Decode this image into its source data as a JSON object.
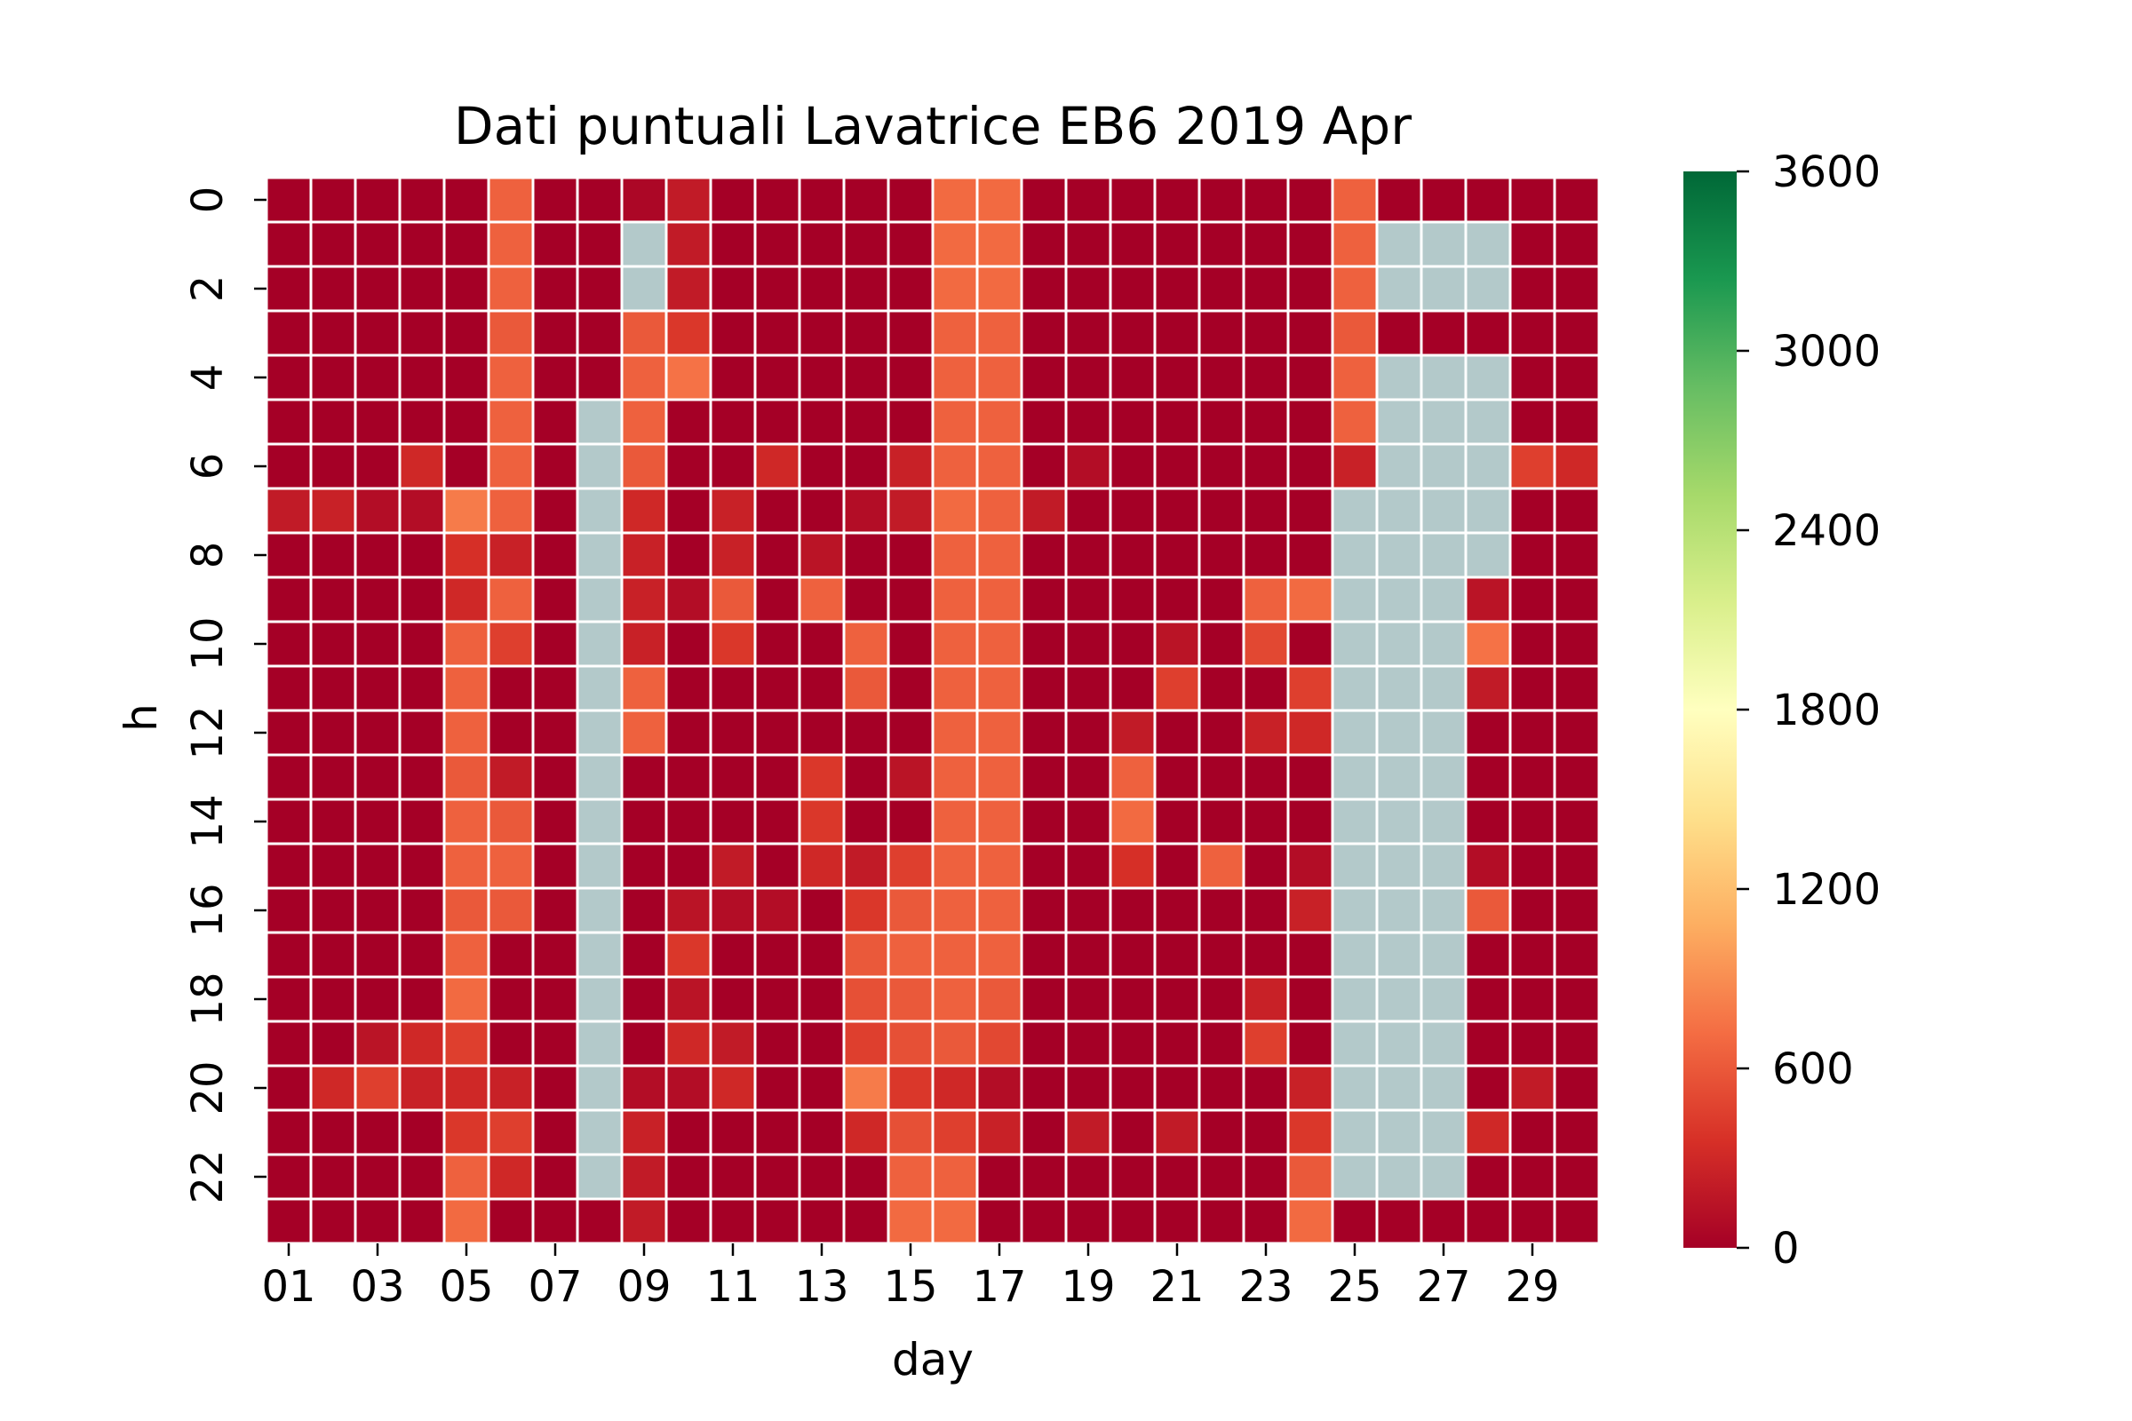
{
  "chart_data": {
    "type": "heatmap",
    "title": "Dati puntuali Lavatrice EB6 2019 Apr",
    "xlabel": "day",
    "ylabel": "h",
    "x": [
      "01",
      "02",
      "03",
      "04",
      "05",
      "06",
      "07",
      "08",
      "09",
      "10",
      "11",
      "12",
      "13",
      "14",
      "15",
      "16",
      "17",
      "18",
      "19",
      "20",
      "21",
      "22",
      "23",
      "24",
      "25",
      "26",
      "27",
      "28",
      "29",
      "30"
    ],
    "y": [
      0,
      1,
      2,
      3,
      4,
      5,
      6,
      7,
      8,
      9,
      10,
      11,
      12,
      13,
      14,
      15,
      16,
      17,
      18,
      19,
      20,
      21,
      22,
      23
    ],
    "x_tick_labels": [
      "01",
      "03",
      "05",
      "07",
      "09",
      "11",
      "13",
      "15",
      "17",
      "19",
      "21",
      "23",
      "25",
      "27",
      "29"
    ],
    "y_tick_labels": [
      "0",
      "2",
      "4",
      "6",
      "8",
      "10",
      "12",
      "14",
      "16",
      "18",
      "20",
      "22"
    ],
    "colorbar": {
      "vmin": 0,
      "vmax": 3600,
      "ticks": [
        "0",
        "600",
        "1200",
        "1800",
        "2400",
        "3000",
        "3600"
      ],
      "colormap": "RdYlGn",
      "colors": [
        "#a50026",
        "#d73027",
        "#f46d43",
        "#fdae61",
        "#fee08b",
        "#ffffbf",
        "#d9ef8b",
        "#a6d96a",
        "#66bd63",
        "#1a9850",
        "#006837"
      ]
    },
    "missing_color": "#b3c9ca",
    "grid_line_color": "#ffffff",
    "values": [
      [
        0,
        0,
        0,
        0,
        0,
        650,
        0,
        0,
        50,
        200,
        0,
        0,
        0,
        0,
        0,
        700,
        700,
        0,
        0,
        0,
        0,
        0,
        0,
        0,
        650,
        0,
        0,
        0,
        0,
        0
      ],
      [
        0,
        0,
        0,
        0,
        0,
        650,
        0,
        0,
        null,
        200,
        0,
        0,
        0,
        0,
        0,
        700,
        700,
        0,
        0,
        0,
        0,
        0,
        0,
        0,
        650,
        null,
        null,
        null,
        0,
        0
      ],
      [
        0,
        0,
        0,
        0,
        0,
        650,
        0,
        0,
        null,
        200,
        0,
        0,
        0,
        0,
        0,
        700,
        700,
        0,
        0,
        0,
        0,
        0,
        0,
        0,
        650,
        null,
        null,
        null,
        0,
        0
      ],
      [
        0,
        0,
        0,
        0,
        0,
        600,
        0,
        0,
        600,
        400,
        0,
        0,
        0,
        0,
        0,
        650,
        650,
        0,
        0,
        0,
        0,
        0,
        0,
        0,
        600,
        0,
        0,
        0,
        0,
        0
      ],
      [
        0,
        0,
        0,
        0,
        0,
        650,
        0,
        0,
        650,
        750,
        0,
        0,
        0,
        0,
        0,
        650,
        650,
        0,
        0,
        0,
        0,
        0,
        0,
        0,
        650,
        null,
        null,
        null,
        0,
        0
      ],
      [
        0,
        0,
        0,
        0,
        0,
        650,
        0,
        null,
        650,
        0,
        0,
        0,
        0,
        0,
        0,
        650,
        650,
        0,
        0,
        0,
        0,
        0,
        0,
        0,
        650,
        null,
        null,
        null,
        0,
        0
      ],
      [
        0,
        0,
        0,
        300,
        0,
        650,
        0,
        null,
        600,
        0,
        0,
        300,
        0,
        0,
        250,
        650,
        650,
        0,
        100,
        0,
        0,
        0,
        0,
        0,
        250,
        null,
        null,
        null,
        450,
        300
      ],
      [
        200,
        250,
        100,
        100,
        800,
        650,
        0,
        null,
        300,
        0,
        250,
        0,
        0,
        100,
        200,
        700,
        650,
        200,
        0,
        0,
        0,
        0,
        0,
        0,
        null,
        null,
        null,
        null,
        0,
        0
      ],
      [
        0,
        0,
        0,
        0,
        350,
        250,
        0,
        null,
        250,
        0,
        250,
        0,
        150,
        0,
        0,
        650,
        650,
        0,
        0,
        0,
        0,
        0,
        0,
        0,
        null,
        null,
        null,
        null,
        0,
        0
      ],
      [
        0,
        0,
        0,
        0,
        300,
        650,
        0,
        null,
        250,
        100,
        600,
        0,
        650,
        0,
        0,
        650,
        650,
        0,
        0,
        0,
        0,
        0,
        650,
        700,
        null,
        null,
        null,
        150,
        0,
        0
      ],
      [
        0,
        0,
        0,
        0,
        650,
        450,
        0,
        null,
        250,
        0,
        400,
        0,
        0,
        650,
        0,
        650,
        650,
        0,
        0,
        0,
        150,
        0,
        500,
        0,
        null,
        null,
        null,
        750,
        0,
        0
      ],
      [
        0,
        0,
        0,
        0,
        650,
        0,
        0,
        null,
        650,
        0,
        0,
        0,
        0,
        600,
        0,
        650,
        650,
        0,
        0,
        0,
        450,
        0,
        0,
        450,
        null,
        null,
        null,
        200,
        0,
        0
      ],
      [
        0,
        0,
        0,
        0,
        650,
        0,
        0,
        null,
        650,
        0,
        0,
        0,
        0,
        0,
        0,
        650,
        650,
        0,
        0,
        200,
        0,
        0,
        250,
        300,
        null,
        null,
        null,
        0,
        0,
        0
      ],
      [
        0,
        0,
        0,
        0,
        600,
        200,
        0,
        null,
        0,
        0,
        0,
        0,
        400,
        0,
        150,
        650,
        650,
        0,
        0,
        650,
        0,
        0,
        0,
        0,
        null,
        null,
        null,
        0,
        0,
        0
      ],
      [
        0,
        0,
        0,
        0,
        650,
        600,
        0,
        null,
        0,
        0,
        0,
        0,
        400,
        0,
        0,
        650,
        650,
        0,
        0,
        700,
        0,
        0,
        0,
        0,
        null,
        null,
        null,
        0,
        0,
        0
      ],
      [
        0,
        0,
        0,
        0,
        650,
        650,
        0,
        null,
        0,
        0,
        200,
        0,
        300,
        200,
        450,
        650,
        650,
        0,
        0,
        350,
        0,
        650,
        0,
        100,
        null,
        null,
        null,
        100,
        0,
        0
      ],
      [
        0,
        0,
        0,
        0,
        600,
        600,
        0,
        null,
        0,
        150,
        100,
        100,
        0,
        400,
        600,
        650,
        650,
        0,
        0,
        0,
        0,
        0,
        0,
        250,
        null,
        null,
        null,
        600,
        0,
        0
      ],
      [
        0,
        0,
        0,
        0,
        650,
        0,
        0,
        null,
        0,
        400,
        0,
        0,
        0,
        600,
        650,
        650,
        650,
        0,
        0,
        0,
        0,
        0,
        0,
        0,
        null,
        null,
        null,
        0,
        0,
        0
      ],
      [
        0,
        0,
        0,
        0,
        700,
        0,
        0,
        null,
        0,
        150,
        0,
        0,
        0,
        550,
        600,
        650,
        600,
        0,
        0,
        0,
        0,
        0,
        250,
        0,
        null,
        null,
        null,
        0,
        0,
        0
      ],
      [
        0,
        0,
        150,
        300,
        450,
        0,
        0,
        null,
        0,
        300,
        200,
        0,
        0,
        450,
        550,
        600,
        500,
        0,
        0,
        0,
        0,
        0,
        450,
        0,
        null,
        null,
        null,
        0,
        0,
        0
      ],
      [
        0,
        300,
        450,
        250,
        300,
        250,
        0,
        null,
        100,
        100,
        300,
        0,
        0,
        800,
        400,
        300,
        100,
        0,
        0,
        0,
        0,
        0,
        0,
        250,
        null,
        null,
        null,
        0,
        200,
        0
      ],
      [
        0,
        0,
        0,
        0,
        400,
        450,
        0,
        null,
        250,
        0,
        0,
        0,
        0,
        300,
        550,
        450,
        250,
        0,
        200,
        0,
        200,
        0,
        0,
        400,
        null,
        null,
        null,
        300,
        0,
        0
      ],
      [
        0,
        0,
        0,
        0,
        650,
        300,
        0,
        null,
        200,
        0,
        0,
        0,
        0,
        0,
        650,
        650,
        0,
        0,
        0,
        0,
        0,
        0,
        0,
        600,
        null,
        null,
        null,
        0,
        0,
        0
      ],
      [
        0,
        0,
        0,
        0,
        700,
        0,
        0,
        0,
        200,
        0,
        0,
        0,
        0,
        0,
        700,
        700,
        0,
        0,
        0,
        0,
        0,
        0,
        0,
        700,
        0,
        0,
        0,
        0,
        0,
        0
      ]
    ]
  }
}
